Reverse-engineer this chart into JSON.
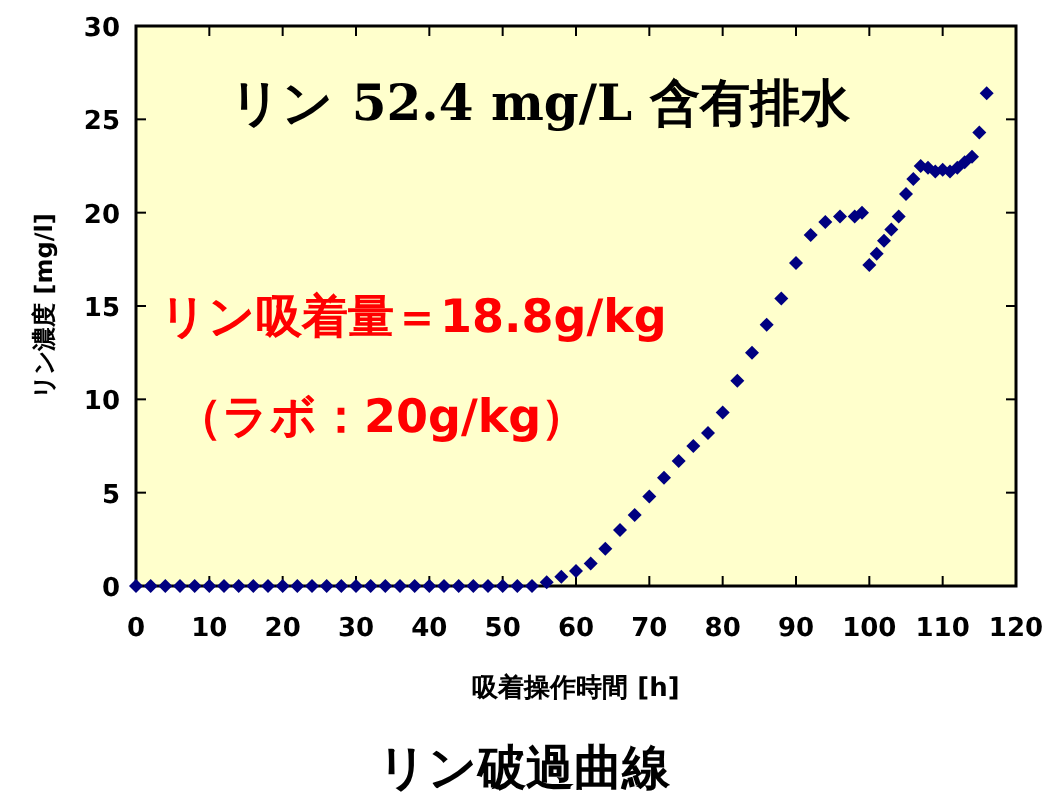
{
  "chart_data": {
    "type": "scatter",
    "title": "リン破過曲線",
    "xlabel": "吸着操作時間 [h]",
    "ylabel": "リン濃度 [mg/l]",
    "annotations": [
      "リン 52.4 mg/L 含有排水",
      "リン吸着量＝18.8g/kg",
      "（ラボ：20g/kg）"
    ],
    "marker": "diamond",
    "xlim": [
      0,
      120
    ],
    "ylim": [
      0,
      30
    ],
    "xticks": [
      0,
      10,
      20,
      30,
      40,
      50,
      60,
      70,
      80,
      90,
      100,
      110,
      120
    ],
    "yticks": [
      0,
      5,
      10,
      15,
      20,
      25,
      30
    ],
    "series": [
      {
        "color": "#000080",
        "x": [
          0,
          2,
          4,
          6,
          8,
          10,
          12,
          14,
          16,
          18,
          20,
          22,
          24,
          26,
          28,
          30,
          32,
          34,
          36,
          38,
          40,
          42,
          44,
          46,
          48,
          50,
          52,
          54,
          56,
          58,
          60,
          62,
          64,
          66,
          68,
          70,
          72,
          74,
          76,
          78,
          80,
          82,
          84,
          86,
          88,
          90,
          92,
          94,
          96,
          98,
          99,
          100,
          101,
          102,
          103,
          104,
          105,
          106,
          107,
          108,
          109,
          110,
          111,
          112,
          113,
          114,
          115,
          116
        ],
        "values": [
          0,
          0,
          0,
          0,
          0,
          0,
          0,
          0,
          0,
          0,
          0,
          0,
          0,
          0,
          0,
          0,
          0,
          0,
          0,
          0,
          0,
          0,
          0,
          0,
          0,
          0,
          0,
          0,
          0.2,
          0.5,
          0.8,
          1.2,
          2.0,
          3.0,
          3.8,
          4.8,
          5.8,
          6.7,
          7.5,
          8.2,
          9.3,
          11.0,
          12.5,
          14.0,
          15.4,
          17.3,
          18.8,
          19.5,
          19.8,
          19.8,
          20.0,
          17.2,
          17.8,
          18.5,
          19.1,
          19.8,
          21.0,
          21.8,
          22.5,
          22.4,
          22.2,
          22.3,
          22.2,
          22.4,
          22.7,
          23.0,
          24.3,
          26.4
        ]
      }
    ]
  }
}
